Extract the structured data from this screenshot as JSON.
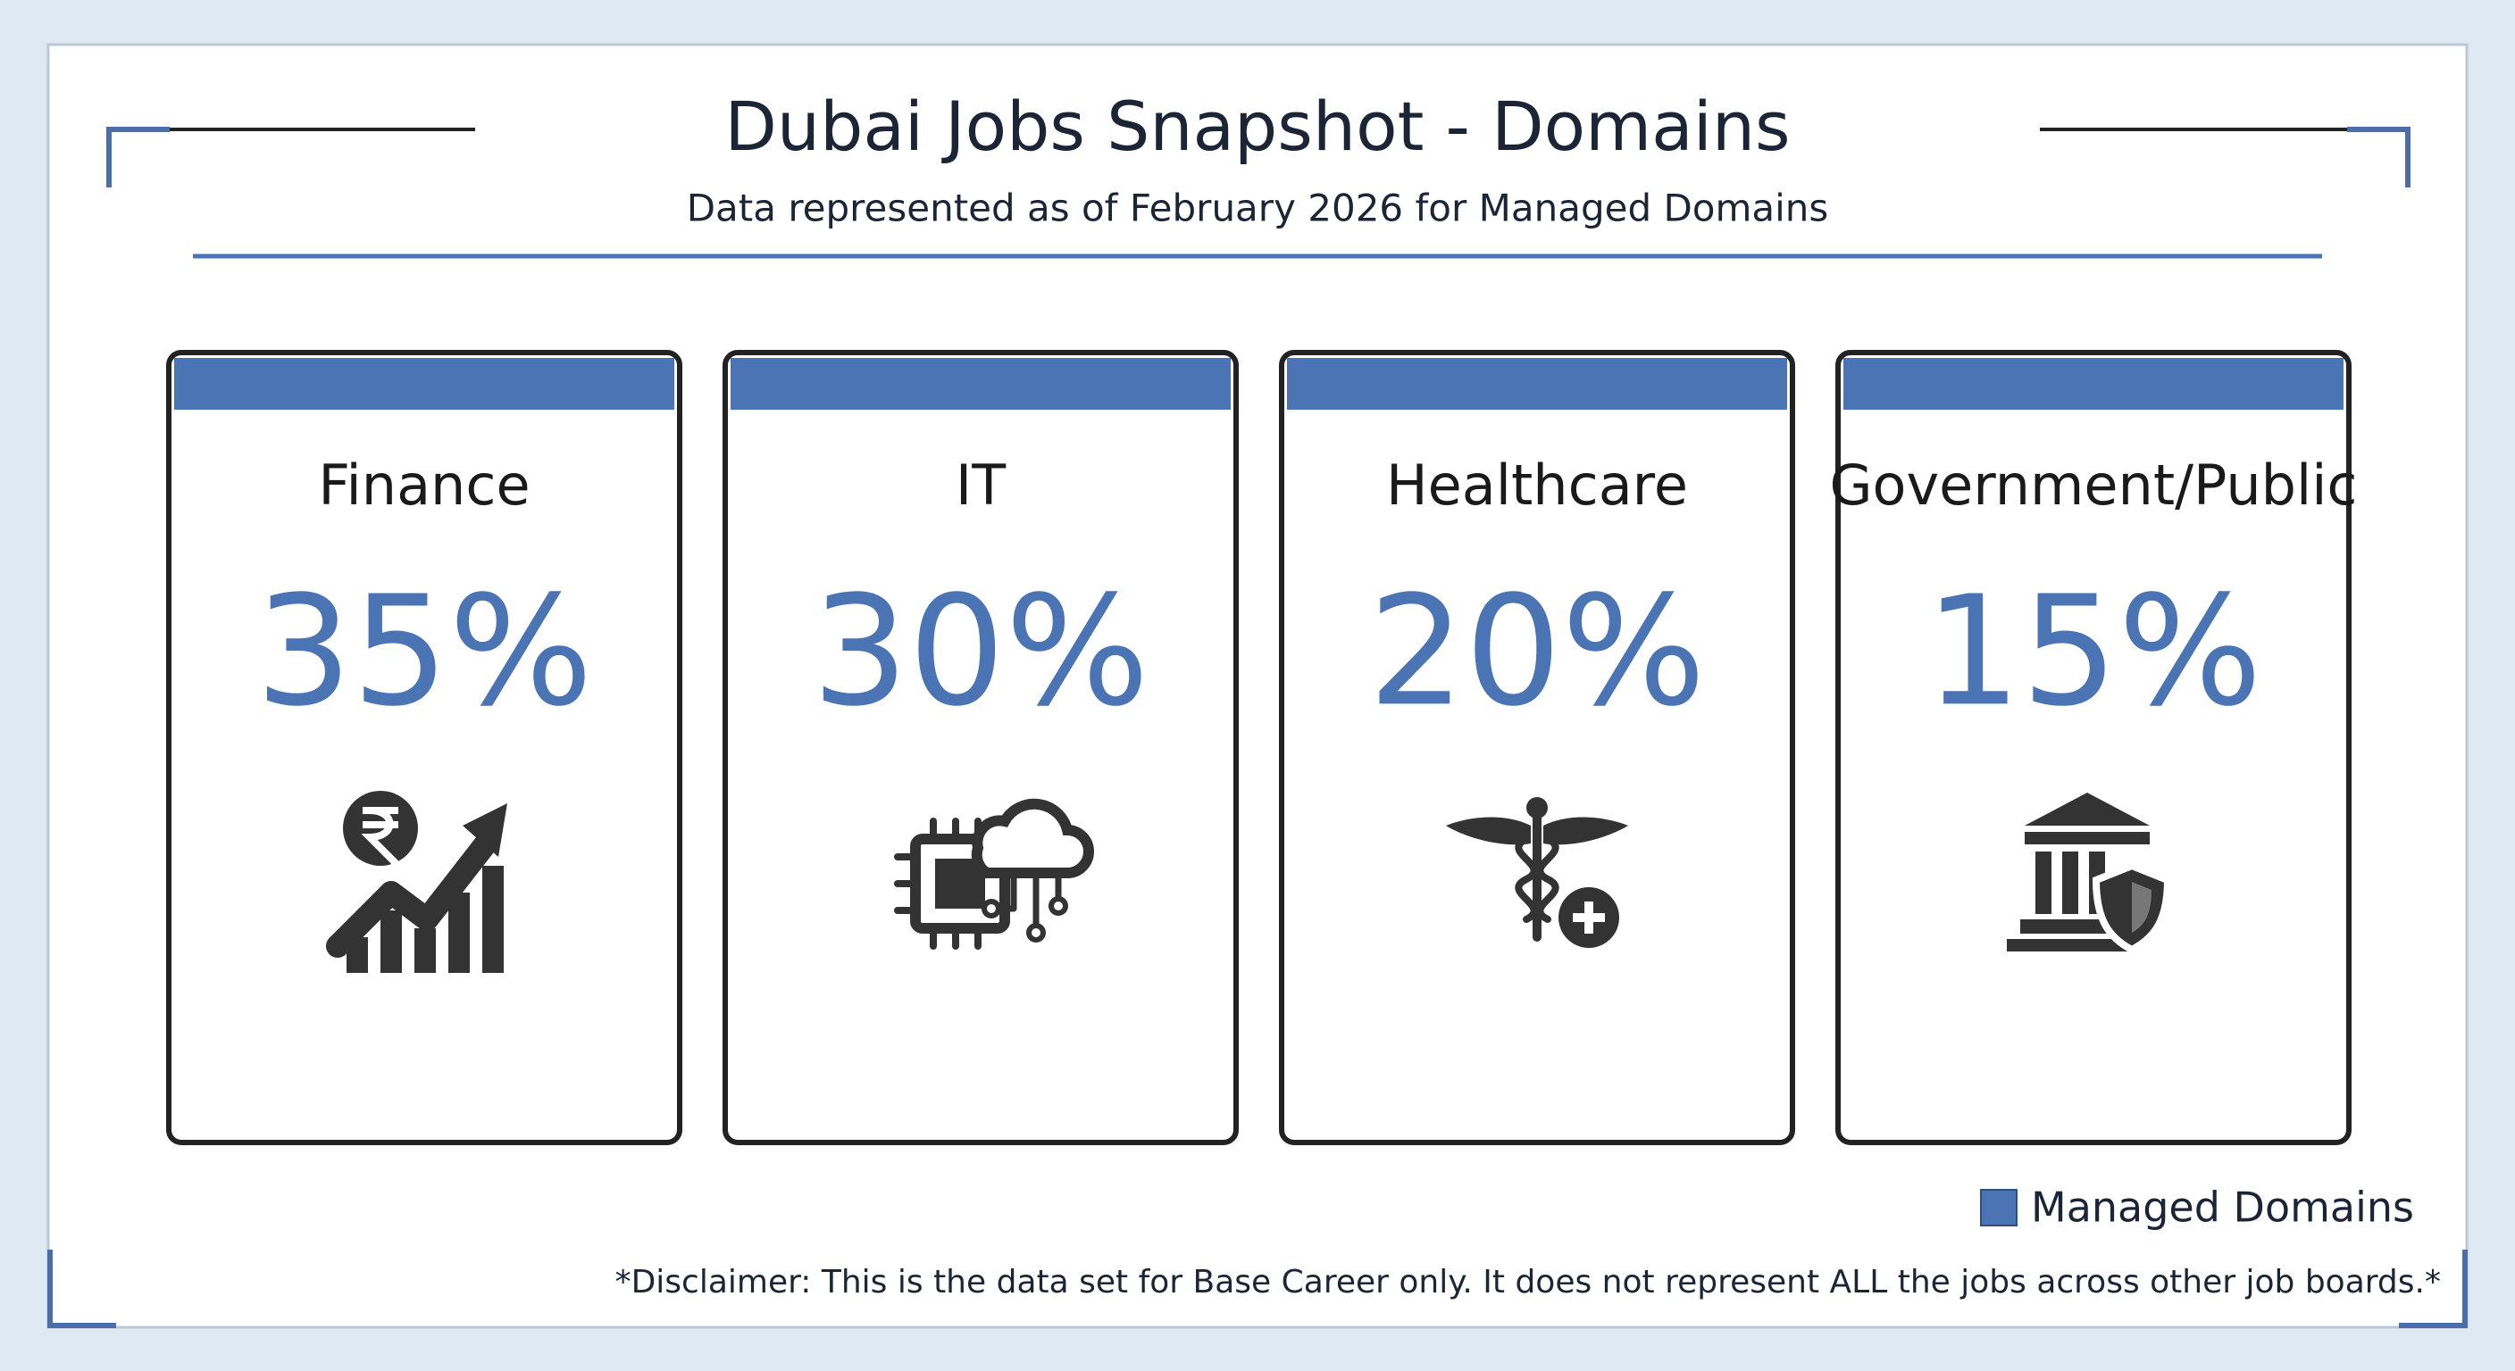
{
  "header": {
    "title": "Dubai Jobs Snapshot - Domains",
    "subtitle": "Data represented as of February 2026 for Managed Domains"
  },
  "cards": [
    {
      "label": "Finance",
      "value": "35%"
    },
    {
      "label": "IT",
      "value": "30%"
    },
    {
      "label": "Healthcare",
      "value": "20%"
    },
    {
      "label": "Government/Public",
      "value": "15%"
    }
  ],
  "legend": "Managed Domains",
  "disclaimer": "*Disclaimer: This is the data set for Base Career only. It does not represent ALL the jobs across other job boards.*"
}
